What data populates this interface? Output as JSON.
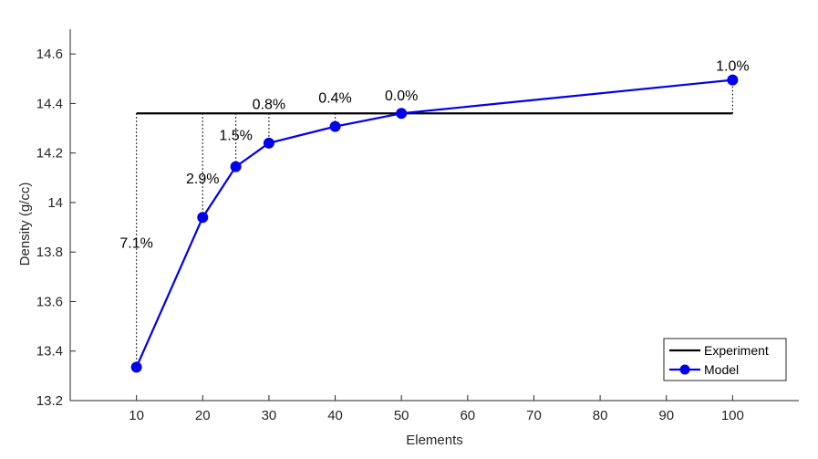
{
  "chart_data": {
    "type": "line",
    "xlabel": "Elements",
    "ylabel": "Density (g/cc)",
    "xlim": [
      0,
      110
    ],
    "ylim": [
      13.2,
      14.7
    ],
    "x_ticks": [
      10,
      20,
      30,
      40,
      50,
      60,
      70,
      80,
      90,
      100
    ],
    "y_ticks": [
      13.2,
      13.4,
      13.6,
      13.8,
      14.0,
      14.2,
      14.4,
      14.6
    ],
    "y_tick_labels": [
      "13.2",
      "13.4",
      "13.6",
      "13.8",
      "14",
      "14.2",
      "14.4",
      "14.6"
    ],
    "grid": false,
    "legend_position": "bottom-right",
    "series": [
      {
        "name": "Experiment",
        "color": "#000000",
        "marker": "none",
        "x": [
          10,
          100
        ],
        "y": [
          14.36,
          14.36
        ]
      },
      {
        "name": "Model",
        "color": "#0000ee",
        "marker": "circle",
        "x": [
          10,
          20,
          25,
          30,
          40,
          50,
          100
        ],
        "y": [
          13.335,
          13.94,
          14.145,
          14.24,
          14.307,
          14.36,
          14.495
        ]
      }
    ],
    "annotations": [
      {
        "x": 10,
        "y": 13.84,
        "text": "7.1%"
      },
      {
        "x": 20,
        "y": 14.1,
        "text": "2.9%"
      },
      {
        "x": 25,
        "y": 14.275,
        "text": "1.5%"
      },
      {
        "x": 30,
        "y": 14.4,
        "text": "0.8%"
      },
      {
        "x": 40,
        "y": 14.425,
        "text": "0.4%"
      },
      {
        "x": 50,
        "y": 14.435,
        "text": "0.0%"
      },
      {
        "x": 100,
        "y": 14.555,
        "text": "1.0%"
      }
    ]
  }
}
